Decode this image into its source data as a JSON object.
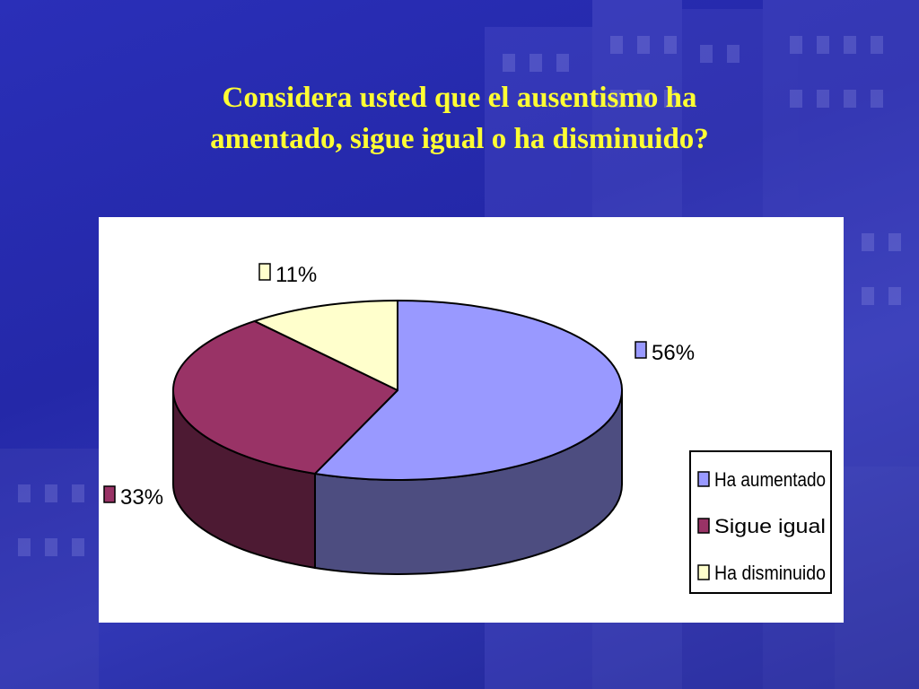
{
  "slide": {
    "title_line1": "Considera usted que el ausentismo ha",
    "title_line2": "amentado, sigue igual o ha disminuido?"
  },
  "colors": {
    "background": "#2a2fb8",
    "title": "#ffff33",
    "panel": "#ffffff"
  },
  "chart_data": {
    "type": "pie",
    "style": "3d",
    "title": "",
    "categories": [
      "Ha aumentado",
      "Sigue igual",
      "Ha disminuido"
    ],
    "values": [
      56,
      33,
      11
    ],
    "value_labels": [
      "56%",
      "33%",
      "11%"
    ],
    "colors": [
      "#9999ff",
      "#993366",
      "#ffffcc"
    ],
    "side_colors": [
      "#4d4d80",
      "#4d1a33",
      "#80806a"
    ],
    "legend_position": "right-bottom"
  }
}
